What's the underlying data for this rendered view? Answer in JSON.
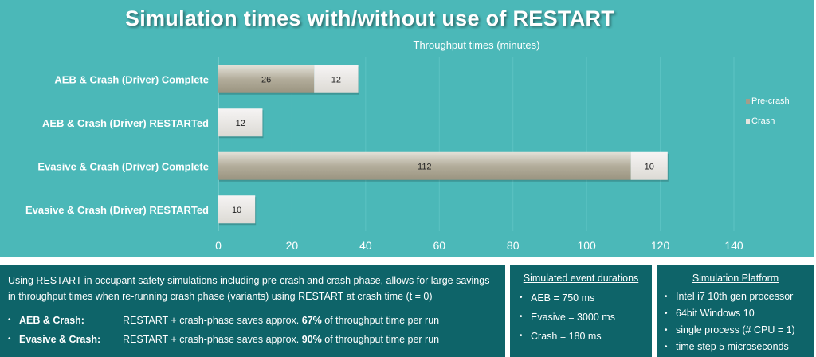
{
  "chart_data": {
    "type": "bar",
    "orientation": "horizontal",
    "stacked": true,
    "title": "Simulation times with/without use of RESTART",
    "subtitle": "Throughput times (minutes)",
    "categories": [
      "AEB & Crash (Driver) Complete",
      "AEB & Crash (Driver) RESTARTed",
      "Evasive & Crash (Driver) Complete",
      "Evasive & Crash (Driver) RESTARTed"
    ],
    "series": [
      {
        "name": "Pre-crash",
        "values": [
          26,
          0,
          112,
          0
        ],
        "color": "#a39d8a"
      },
      {
        "name": "Crash",
        "values": [
          12,
          12,
          10,
          10
        ],
        "color": "#e6e4de"
      }
    ],
    "xlim": [
      0,
      140
    ],
    "xticks": [
      0,
      20,
      40,
      60,
      80,
      100,
      120,
      140
    ],
    "grid": true,
    "legend": "right"
  },
  "summary": {
    "intro": "Using RESTART in occupant safety simulations including pre-crash and crash phase, allows for large savings in throughput times when re-running crash phase (variants) using RESTART at crash time (t = 0)",
    "items": [
      {
        "label": "AEB & Crash:",
        "pre": "RESTART + crash-phase saves approx. ",
        "pct": "67%",
        "post": " of throughput time per run"
      },
      {
        "label": "Evasive & Crash:",
        "pre": "RESTART + crash-phase saves approx. ",
        "pct": "90%",
        "post": " of throughput time per run"
      }
    ]
  },
  "durations": {
    "heading": "Simulated event durations",
    "items": [
      "AEB  = 750 ms",
      "Evasive = 3000 ms",
      "Crash = 180 ms"
    ]
  },
  "platform": {
    "heading": "Simulation Platform",
    "items": [
      "Intel i7 10th gen processor",
      "64bit Windows 10",
      "single process (# CPU = 1)",
      "time step 5 microseconds"
    ]
  }
}
